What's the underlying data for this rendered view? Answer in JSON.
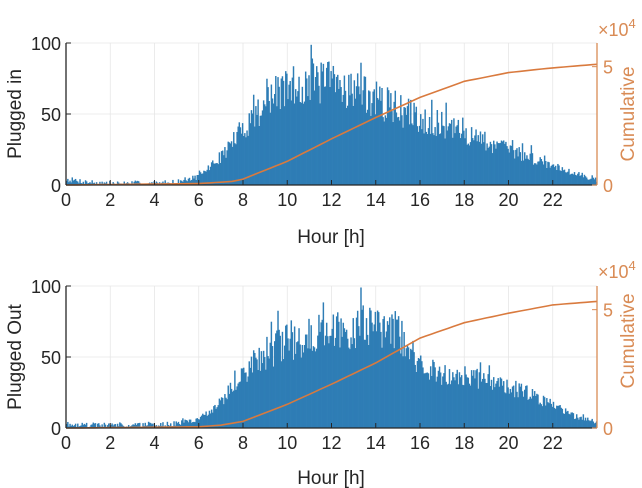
{
  "chart_data": [
    {
      "type": "bar",
      "xlabel": "Hour [h]",
      "ylabel": "Plugged in",
      "y2label": "Cumulative",
      "y2_multiplier": "×10",
      "y2_exponent": "4",
      "xlim": [
        0,
        24
      ],
      "ylim": [
        0,
        100
      ],
      "y2lim": [
        0,
        60000
      ],
      "xticks": [
        "0",
        "2",
        "4",
        "6",
        "8",
        "10",
        "12",
        "14",
        "16",
        "18",
        "20",
        "22"
      ],
      "yticks": [
        "0",
        "50",
        "100"
      ],
      "y2ticks": [
        "0",
        "5"
      ],
      "grid": true,
      "colors": {
        "bars": "#2e7db5",
        "cumulative": "#d97a3e",
        "axis2": "#d98b55"
      },
      "hist_profile": {
        "hours": [
          0,
          1,
          2,
          3,
          4,
          5,
          6,
          7,
          8,
          9,
          10,
          11,
          12,
          13,
          14,
          15,
          16,
          17,
          18,
          19,
          20,
          21,
          22,
          23,
          24
        ],
        "count": [
          4,
          2,
          1,
          1,
          1,
          2,
          6,
          20,
          40,
          58,
          68,
          73,
          72,
          68,
          60,
          53,
          47,
          42,
          36,
          30,
          25,
          19,
          14,
          8,
          4
        ]
      },
      "cumulative": {
        "x": [
          0,
          6,
          7.5,
          8,
          10,
          12,
          14,
          16,
          18,
          20,
          22,
          24
        ],
        "y": [
          0,
          600,
          1500,
          2500,
          10000,
          19500,
          28500,
          37000,
          43800,
          47500,
          49500,
          51000
        ]
      }
    },
    {
      "type": "bar",
      "xlabel": "Hour [h]",
      "ylabel": "Plugged Out",
      "y2label": "Cumulative",
      "y2_multiplier": "×10",
      "y2_exponent": "4",
      "xlim": [
        0,
        24
      ],
      "ylim": [
        0,
        100
      ],
      "y2lim": [
        0,
        60000
      ],
      "xticks": [
        "0",
        "2",
        "4",
        "6",
        "8",
        "10",
        "12",
        "14",
        "16",
        "18",
        "20",
        "22"
      ],
      "yticks": [
        "0",
        "50",
        "100"
      ],
      "y2ticks": [
        "0",
        "5"
      ],
      "grid": true,
      "colors": {
        "bars": "#2e7db5",
        "cumulative": "#d97a3e",
        "axis2": "#d98b55"
      },
      "hist_profile": {
        "hours": [
          0,
          1,
          2,
          3,
          4,
          5,
          6,
          7,
          8,
          9,
          10,
          11,
          12,
          13,
          14,
          15,
          16,
          17,
          18,
          19,
          20,
          21,
          22,
          23,
          24
        ],
        "count": [
          3,
          2,
          2,
          2,
          2,
          3,
          6,
          18,
          38,
          52,
          60,
          65,
          68,
          72,
          74,
          70,
          42,
          38,
          36,
          33,
          29,
          24,
          16,
          8,
          4
        ]
      },
      "cumulative": {
        "x": [
          0,
          6,
          7,
          8,
          10,
          12,
          14,
          16,
          18,
          20,
          22,
          24
        ],
        "y": [
          0,
          500,
          1200,
          2800,
          10000,
          18500,
          27500,
          38000,
          44500,
          48500,
          52000,
          53500
        ]
      }
    }
  ]
}
